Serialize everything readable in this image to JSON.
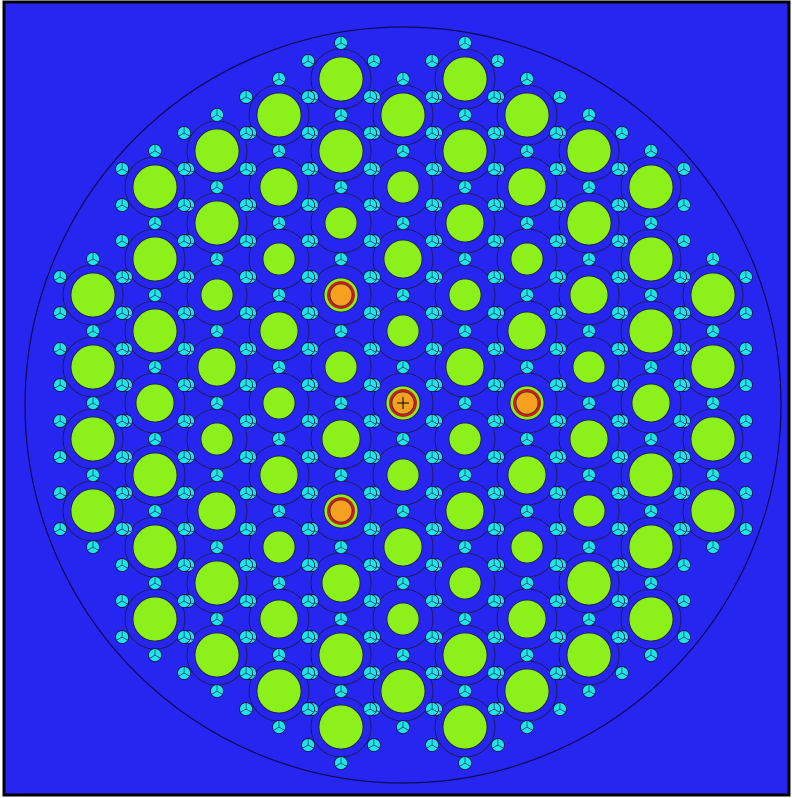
{
  "colors": {
    "background": "#2626f0",
    "frame_border": "#000000",
    "vessel_line": "#0a0a55",
    "fuel": "#8cf01a",
    "fuel_outline": "#1a1a40",
    "gap_ring": "#1e1ec8",
    "pin": "#1ee6e6",
    "pin_outline": "#10104a",
    "spacer": "#d21e3c",
    "control_fuel": "#f5a01e",
    "control_ring": "#c81e1e",
    "control_clad": "#8cf01a"
  },
  "icons": {
    "fuel_element": "large-green-disk",
    "coolant_pin": "cyan-three-lobe-pin",
    "control_element": "orange-disk-red-ring"
  },
  "lattice": {
    "type": "hexagonal",
    "rings": 6,
    "control_positions": [
      [
        0,
        0
      ],
      [
        2,
        0
      ],
      [
        -1,
        -2
      ],
      [
        -1,
        2
      ]
    ]
  }
}
